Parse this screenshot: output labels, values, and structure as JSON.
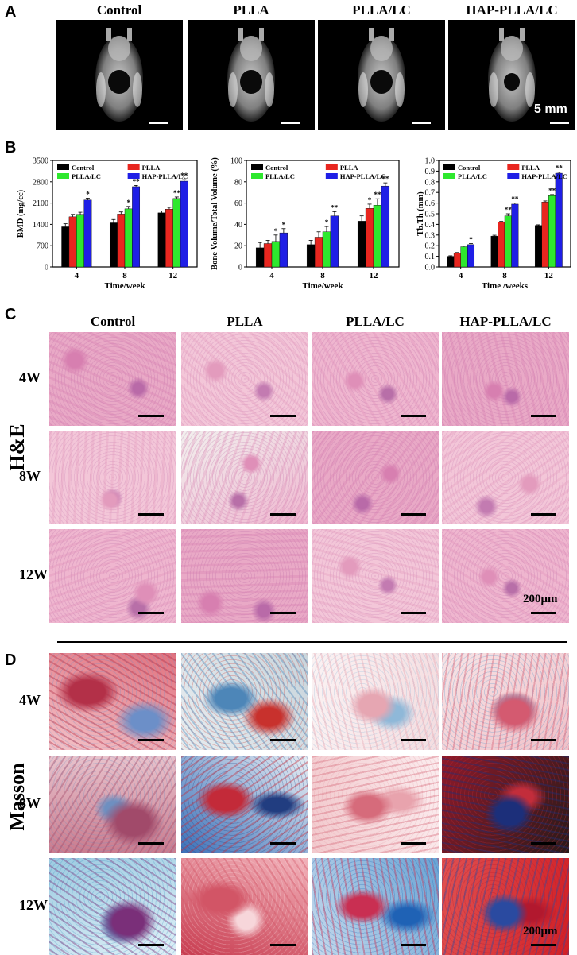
{
  "panels": {
    "a": "A",
    "b": "B",
    "c": "C",
    "d": "D"
  },
  "groups": [
    "Control",
    "PLLA",
    "PLLA/LC",
    "HAP-PLLA/LC"
  ],
  "ct_scale": "5 mm",
  "histology_scale": "200μm",
  "stains": {
    "he": "H&E",
    "masson": "Masson"
  },
  "time_rows": [
    "4W",
    "8W",
    "12W"
  ],
  "colors": {
    "Control": "#000000",
    "PLLA": "#e8261f",
    "PLLA/LC": "#2ee82e",
    "HAP-PLLA/LC": "#1f1fe6"
  },
  "chart_data": [
    {
      "type": "bar",
      "categories": [
        "4",
        "8",
        "12"
      ],
      "xlabel": "Time/week",
      "ylabel": "BMD (mg/cc)",
      "ylim": [
        0,
        3500
      ],
      "yticks": [
        0,
        700,
        1400,
        2100,
        2800,
        3500
      ],
      "series": [
        {
          "name": "Control",
          "values": [
            1320,
            1450,
            1780
          ],
          "errors": [
            100,
            110,
            60
          ]
        },
        {
          "name": "PLLA",
          "values": [
            1650,
            1740,
            1900
          ],
          "errors": [
            80,
            70,
            60
          ]
        },
        {
          "name": "PLLA/LC",
          "values": [
            1730,
            1910,
            2250
          ],
          "errors": [
            70,
            80,
            50
          ]
        },
        {
          "name": "HAP-PLLA/LC",
          "values": [
            2200,
            2640,
            2820
          ],
          "errors": [
            60,
            40,
            50
          ]
        }
      ],
      "marks": [
        [
          "",
          "",
          "",
          "*"
        ],
        [
          "",
          "",
          "*",
          "**"
        ],
        [
          "",
          "",
          "**",
          "**"
        ]
      ]
    },
    {
      "type": "bar",
      "categories": [
        "4",
        "8",
        "12"
      ],
      "xlabel": "Time/week",
      "ylabel": "Bone Volume/Total Volume (%)",
      "ylim": [
        0,
        100
      ],
      "yticks": [
        0,
        20,
        40,
        60,
        80,
        100
      ],
      "series": [
        {
          "name": "Control",
          "values": [
            18,
            21,
            43
          ],
          "errors": [
            5,
            4,
            5
          ]
        },
        {
          "name": "PLLA",
          "values": [
            22,
            28,
            55
          ],
          "errors": [
            3,
            5,
            4
          ]
        },
        {
          "name": "PLLA/LC",
          "values": [
            24,
            33,
            58
          ],
          "errors": [
            6,
            5,
            6
          ]
        },
        {
          "name": "HAP-PLLA/LC",
          "values": [
            32,
            48,
            76
          ],
          "errors": [
            4,
            4,
            3
          ]
        }
      ],
      "marks": [
        [
          "",
          "",
          "*",
          "*"
        ],
        [
          "",
          "",
          "*",
          "**"
        ],
        [
          "",
          "*",
          "**",
          "**"
        ]
      ]
    },
    {
      "type": "bar",
      "categories": [
        "4",
        "8",
        "12"
      ],
      "xlabel": "Time /weeks",
      "ylabel": "Tb.Th (mm)",
      "ylim": [
        0,
        1.0
      ],
      "yticks": [
        0.0,
        0.1,
        0.2,
        0.3,
        0.4,
        0.5,
        0.6,
        0.7,
        0.8,
        0.9,
        1.0
      ],
      "series": [
        {
          "name": "Control",
          "values": [
            0.1,
            0.29,
            0.39
          ],
          "errors": [
            0.005,
            0.008,
            0.006
          ]
        },
        {
          "name": "PLLA",
          "values": [
            0.13,
            0.42,
            0.61
          ],
          "errors": [
            0.006,
            0.008,
            0.01
          ]
        },
        {
          "name": "PLLA/LC",
          "values": [
            0.19,
            0.48,
            0.67
          ],
          "errors": [
            0.008,
            0.02,
            0.01
          ]
        },
        {
          "name": "HAP-PLLA/LC",
          "values": [
            0.21,
            0.59,
            0.88
          ],
          "errors": [
            0.01,
            0.01,
            0.01
          ]
        }
      ],
      "marks": [
        [
          "",
          "",
          "",
          "*"
        ],
        [
          "",
          "",
          "**",
          "**"
        ],
        [
          "",
          "",
          "**",
          "**"
        ]
      ]
    }
  ]
}
